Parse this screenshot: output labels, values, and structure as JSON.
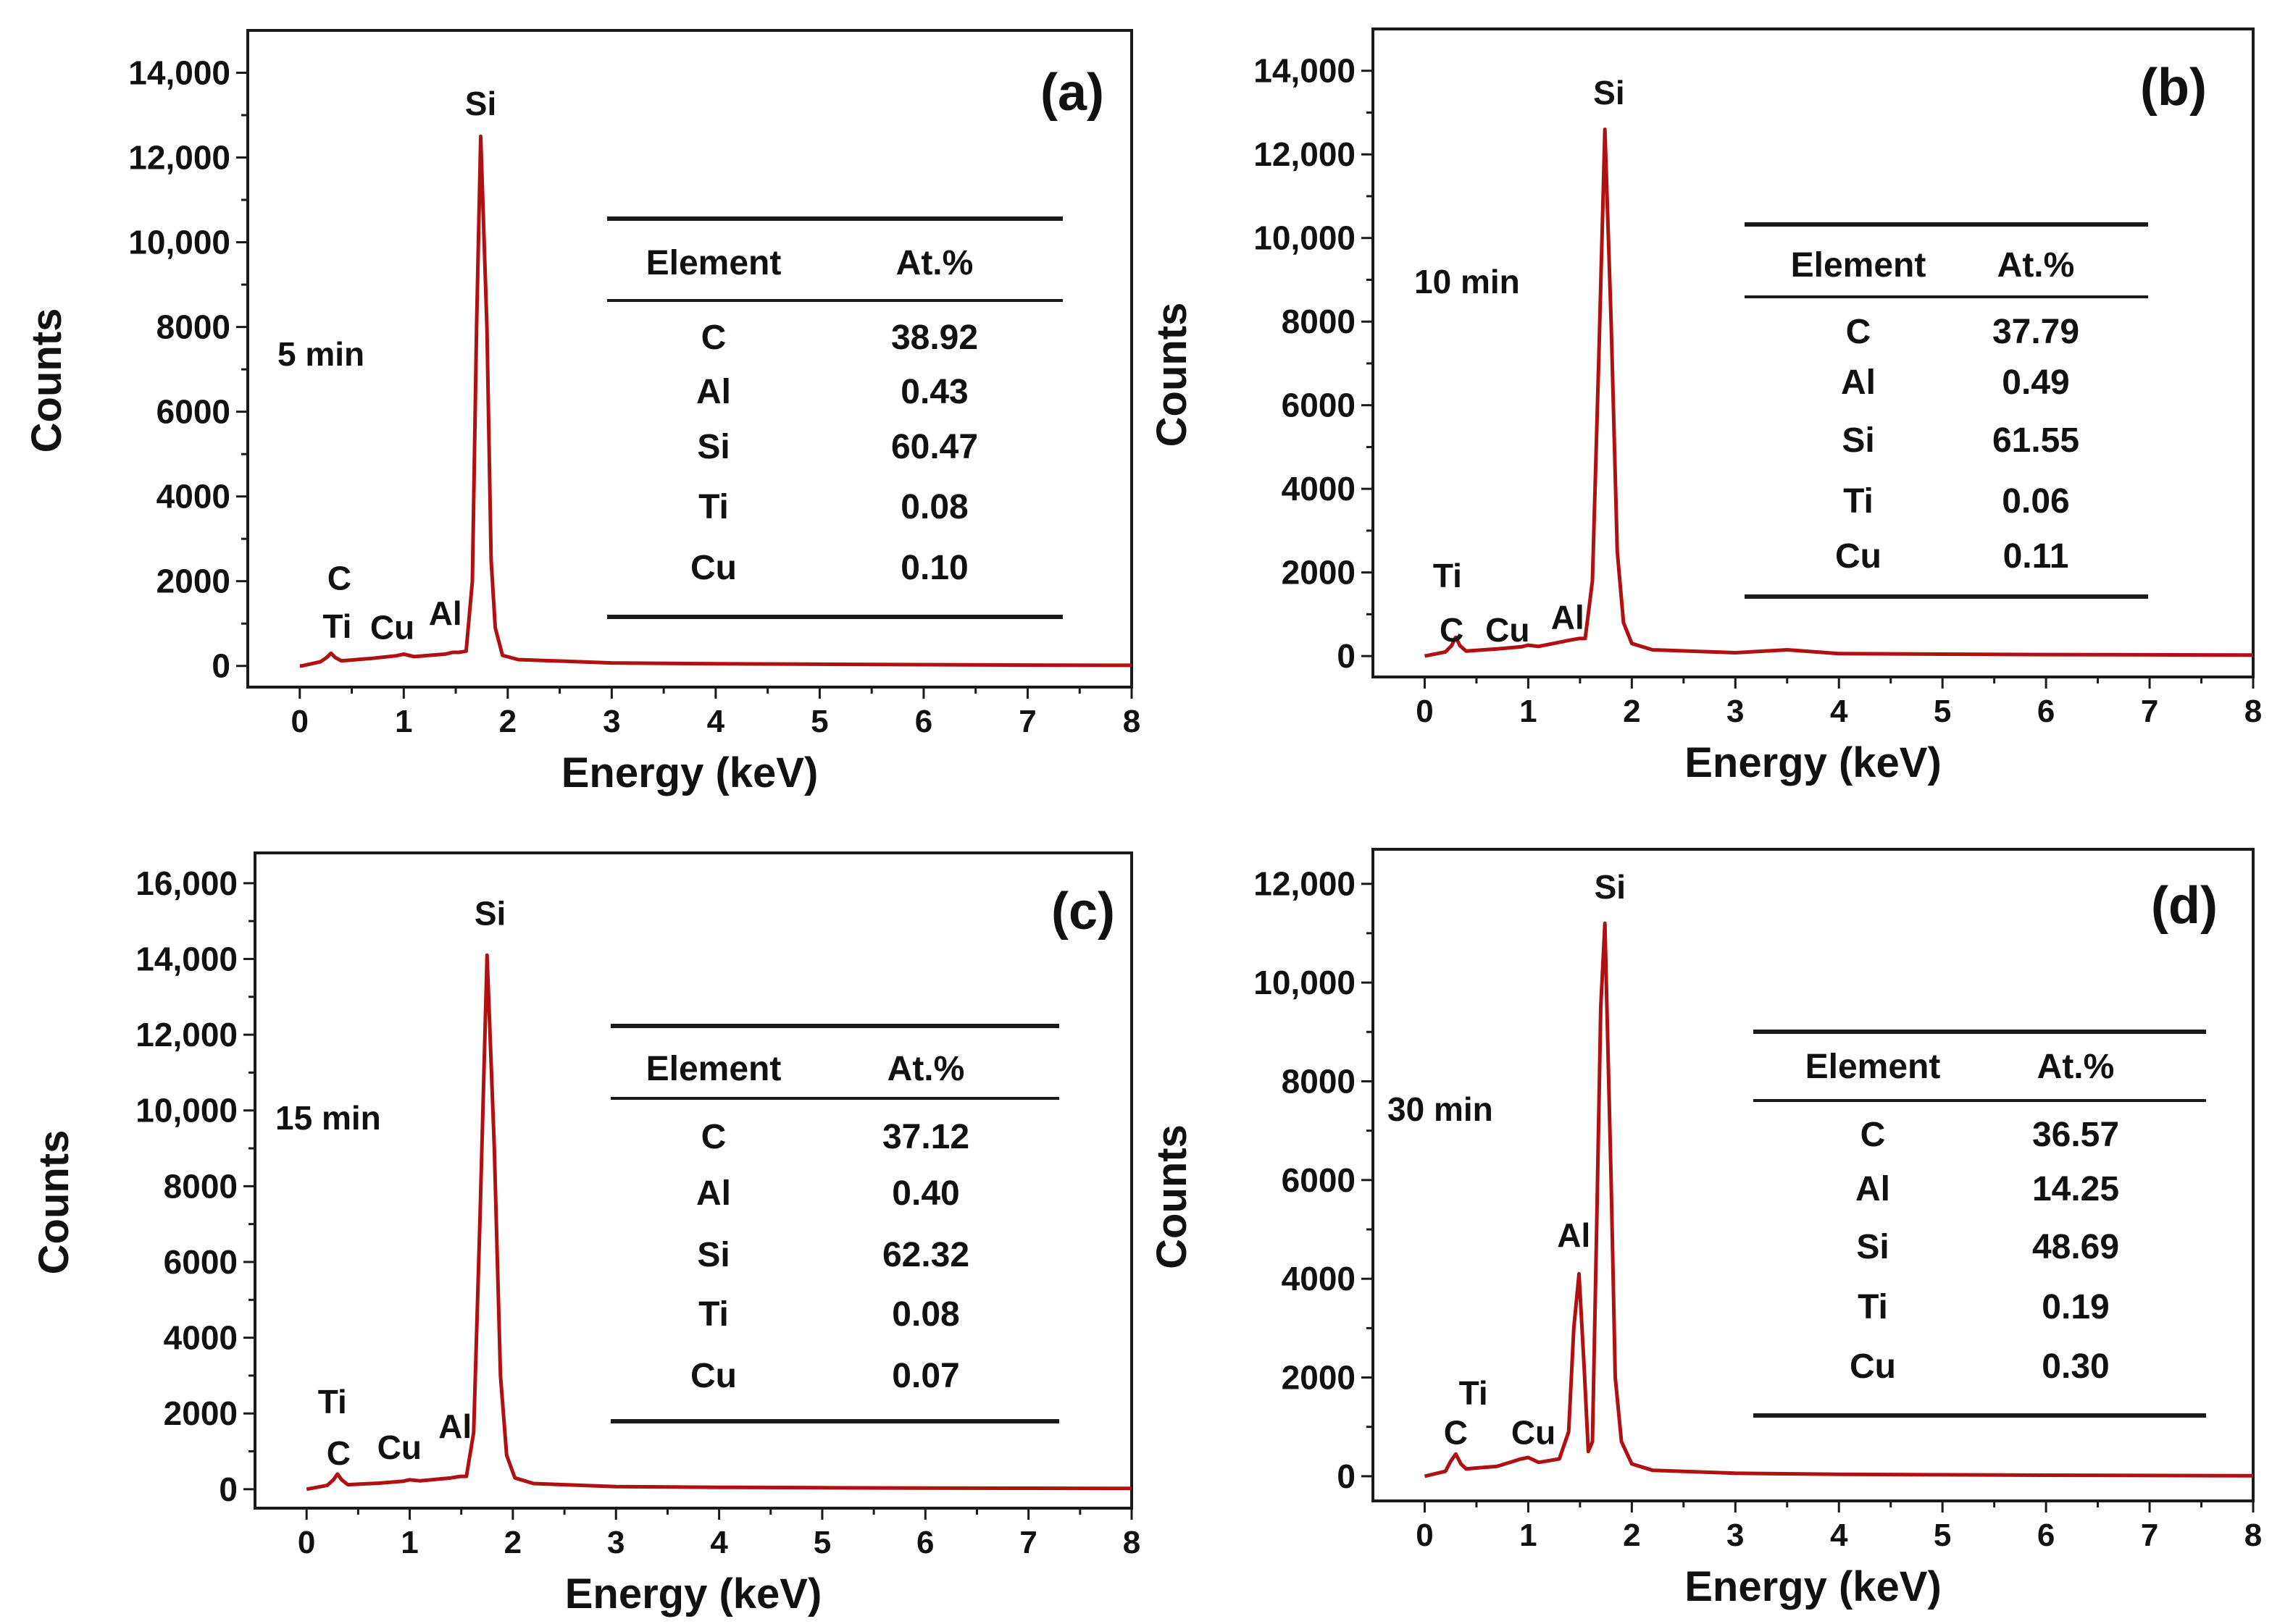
{
  "colors": {
    "spectrum": "#b01010",
    "axis": "#1a1a1a",
    "text": "#111111"
  },
  "chart_data": [
    {
      "type": "line",
      "panel_label": "(a)",
      "time_label": "5 min",
      "xlabel": "Energy (keV)",
      "ylabel": "Counts",
      "xlim": [
        -0.5,
        8
      ],
      "ylim": [
        -500,
        15000
      ],
      "x_ticks": [
        0,
        1,
        2,
        3,
        4,
        5,
        6,
        7,
        8
      ],
      "x_tick_labels": [
        "0",
        "1",
        "2",
        "3",
        "4",
        "5",
        "6",
        "7",
        "8"
      ],
      "y_ticks": [
        0,
        2000,
        4000,
        6000,
        8000,
        10000,
        12000,
        14000
      ],
      "y_tick_labels": [
        "0",
        "2000",
        "4000",
        "6000",
        "8000",
        "10,000",
        "12,000",
        "14,000"
      ],
      "series": [
        {
          "name": "EDS spectrum",
          "x": [
            0,
            0.02,
            0.2,
            0.26,
            0.3,
            0.34,
            0.4,
            0.7,
            0.93,
            1.0,
            1.1,
            1.4,
            1.47,
            1.5,
            1.53,
            1.6,
            1.66,
            1.7,
            1.74,
            1.8,
            1.84,
            1.88,
            1.95,
            2.1,
            3.0,
            4.0,
            5.0,
            6.0,
            7.0,
            8.0
          ],
          "y": [
            0,
            0,
            100,
            200,
            300,
            200,
            120,
            180,
            240,
            280,
            220,
            280,
            320,
            320,
            320,
            350,
            2000,
            8000,
            12500,
            8000,
            2500,
            900,
            250,
            150,
            70,
            50,
            40,
            30,
            20,
            15
          ]
        }
      ],
      "peak_labels": [
        {
          "text": "Si",
          "x": 1.74,
          "y": 13000
        },
        {
          "text": "C",
          "x": 0.38,
          "y": 1800
        },
        {
          "text": "Ti",
          "x": 0.36,
          "y": 660
        },
        {
          "text": "Cu",
          "x": 0.89,
          "y": 640
        },
        {
          "text": "Al",
          "x": 1.4,
          "y": 970
        }
      ],
      "table": {
        "headers": [
          "Element",
          "At.%"
        ],
        "rows": [
          [
            "C",
            "38.92"
          ],
          [
            "Al",
            "0.43"
          ],
          [
            "Si",
            "60.47"
          ],
          [
            "Ti",
            "0.08"
          ],
          [
            "Cu",
            "0.10"
          ]
        ]
      }
    },
    {
      "type": "line",
      "panel_label": "(b)",
      "time_label": "10 min",
      "xlabel": "Energy (keV)",
      "ylabel": "Counts",
      "xlim": [
        -0.5,
        8
      ],
      "ylim": [
        -500,
        15000
      ],
      "x_ticks": [
        0,
        1,
        2,
        3,
        4,
        5,
        6,
        7,
        8
      ],
      "x_tick_labels": [
        "0",
        "1",
        "2",
        "3",
        "4",
        "5",
        "6",
        "7",
        "8"
      ],
      "y_ticks": [
        0,
        2000,
        4000,
        6000,
        8000,
        10000,
        12000,
        14000
      ],
      "y_tick_labels": [
        "0",
        "2000",
        "4000",
        "6000",
        "8000",
        "10,000",
        "12,000",
        "14,000"
      ],
      "series": [
        {
          "name": "EDS spectrum",
          "x": [
            0,
            0.2,
            0.26,
            0.3,
            0.34,
            0.4,
            0.7,
            0.93,
            1.0,
            1.1,
            1.4,
            1.49,
            1.55,
            1.62,
            1.68,
            1.74,
            1.8,
            1.86,
            1.92,
            2.0,
            2.2,
            3.0,
            3.5,
            4.0,
            5.0,
            6.0,
            7.0,
            8.0
          ],
          "y": [
            0,
            100,
            250,
            450,
            250,
            120,
            170,
            220,
            260,
            230,
            380,
            420,
            420,
            1800,
            7000,
            12600,
            8000,
            2500,
            800,
            300,
            150,
            80,
            150,
            60,
            45,
            35,
            30,
            25
          ]
        }
      ],
      "peak_labels": [
        {
          "text": "Si",
          "x": 1.78,
          "y": 13200
        },
        {
          "text": "Ti",
          "x": 0.22,
          "y": 1650
        },
        {
          "text": "C",
          "x": 0.26,
          "y": 350
        },
        {
          "text": "Cu",
          "x": 0.8,
          "y": 350
        },
        {
          "text": "Al",
          "x": 1.38,
          "y": 650
        }
      ],
      "table": {
        "headers": [
          "Element",
          "At.%"
        ],
        "rows": [
          [
            "C",
            "37.79"
          ],
          [
            "Al",
            "0.49"
          ],
          [
            "Si",
            "61.55"
          ],
          [
            "Ti",
            "0.06"
          ],
          [
            "Cu",
            "0.11"
          ]
        ]
      }
    },
    {
      "type": "line",
      "panel_label": "(c)",
      "time_label": "15 min",
      "xlabel": "Energy (keV)",
      "ylabel": "Counts",
      "xlim": [
        -0.5,
        8
      ],
      "ylim": [
        -500,
        16800
      ],
      "x_ticks": [
        0,
        1,
        2,
        3,
        4,
        5,
        6,
        7,
        8
      ],
      "x_tick_labels": [
        "0",
        "1",
        "2",
        "3",
        "4",
        "5",
        "6",
        "7",
        "8"
      ],
      "y_ticks": [
        0,
        2000,
        4000,
        6000,
        8000,
        10000,
        12000,
        14000,
        16000
      ],
      "y_tick_labels": [
        "0",
        "2000",
        "4000",
        "6000",
        "8000",
        "10,000",
        "12,000",
        "14,000",
        "16,000"
      ],
      "series": [
        {
          "name": "EDS spectrum",
          "x": [
            0,
            0.2,
            0.26,
            0.3,
            0.34,
            0.4,
            0.7,
            0.93,
            1.0,
            1.1,
            1.4,
            1.49,
            1.55,
            1.62,
            1.68,
            1.75,
            1.82,
            1.88,
            1.94,
            2.02,
            2.2,
            3.0,
            4.0,
            5.0,
            6.0,
            7.0,
            8.0
          ],
          "y": [
            0,
            100,
            250,
            400,
            250,
            120,
            160,
            210,
            250,
            220,
            300,
            340,
            340,
            1500,
            7000,
            14100,
            9000,
            3000,
            900,
            300,
            150,
            70,
            50,
            40,
            30,
            25,
            20
          ]
        }
      ],
      "peak_labels": [
        {
          "text": "Si",
          "x": 1.78,
          "y": 14900
        },
        {
          "text": "Ti",
          "x": 0.25,
          "y": 2000
        },
        {
          "text": "C",
          "x": 0.31,
          "y": 650
        },
        {
          "text": "Cu",
          "x": 0.9,
          "y": 800
        },
        {
          "text": "Al",
          "x": 1.44,
          "y": 1350
        }
      ],
      "table": {
        "headers": [
          "Element",
          "At.%"
        ],
        "rows": [
          [
            "C",
            "37.12"
          ],
          [
            "Al",
            "0.40"
          ],
          [
            "Si",
            "62.32"
          ],
          [
            "Ti",
            "0.08"
          ],
          [
            "Cu",
            "0.07"
          ]
        ]
      }
    },
    {
      "type": "line",
      "panel_label": "(d)",
      "time_label": "30 min",
      "xlabel": "Energy (keV)",
      "ylabel": "Counts",
      "xlim": [
        -0.5,
        8
      ],
      "ylim": [
        -500,
        12700
      ],
      "x_ticks": [
        0,
        1,
        2,
        3,
        4,
        5,
        6,
        7,
        8
      ],
      "x_tick_labels": [
        "0",
        "1",
        "2",
        "3",
        "4",
        "5",
        "6",
        "7",
        "8"
      ],
      "y_ticks": [
        0,
        2000,
        4000,
        6000,
        8000,
        10000,
        12000
      ],
      "y_tick_labels": [
        "0",
        "2000",
        "4000",
        "6000",
        "8000",
        "10,000",
        "12,000"
      ],
      "series": [
        {
          "name": "EDS spectrum",
          "x": [
            0,
            0.2,
            0.25,
            0.3,
            0.35,
            0.4,
            0.7,
            0.93,
            1.0,
            1.1,
            1.3,
            1.39,
            1.44,
            1.49,
            1.54,
            1.58,
            1.62,
            1.66,
            1.7,
            1.74,
            1.8,
            1.84,
            1.9,
            2.0,
            2.2,
            3.0,
            4.0,
            5.0,
            6.0,
            7.0,
            8.0
          ],
          "y": [
            0,
            100,
            300,
            450,
            250,
            150,
            200,
            350,
            380,
            280,
            350,
            900,
            3000,
            4100,
            2200,
            500,
            700,
            5000,
            9500,
            11200,
            6000,
            2000,
            700,
            250,
            120,
            60,
            40,
            30,
            20,
            15,
            10
          ]
        }
      ],
      "peak_labels": [
        {
          "text": "Si",
          "x": 1.79,
          "y": 11700
        },
        {
          "text": "Al",
          "x": 1.44,
          "y": 4650
        },
        {
          "text": "Ti",
          "x": 0.47,
          "y": 1450
        },
        {
          "text": "C",
          "x": 0.3,
          "y": 650
        },
        {
          "text": "Cu",
          "x": 1.05,
          "y": 650
        }
      ],
      "table": {
        "headers": [
          "Element",
          "At.%"
        ],
        "rows": [
          [
            "C",
            "36.57"
          ],
          [
            "Al",
            "14.25"
          ],
          [
            "Si",
            "48.69"
          ],
          [
            "Ti",
            "0.19"
          ],
          [
            "Cu",
            "0.30"
          ]
        ]
      }
    }
  ]
}
